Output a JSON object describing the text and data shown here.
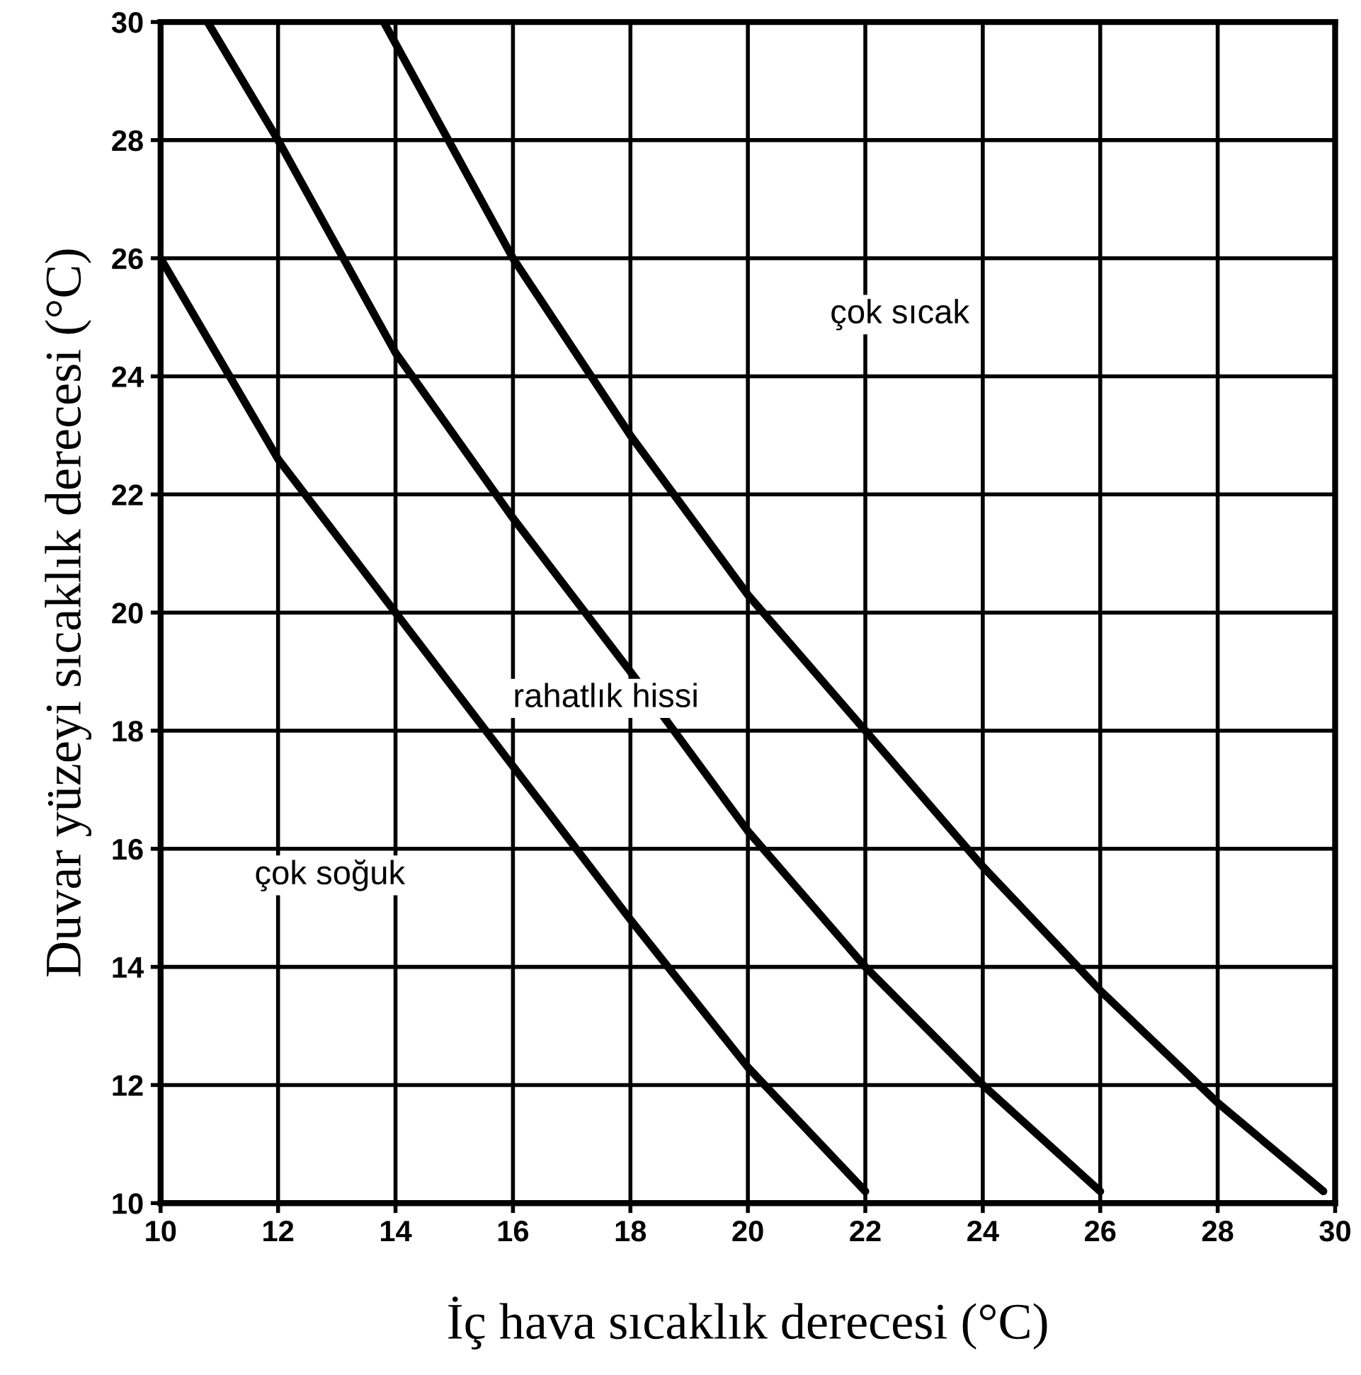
{
  "chart_data": {
    "type": "line",
    "xlabel": "İç hava sıcaklık derecesi (°C)",
    "ylabel": "Duvar yüzeyi sıcaklık derecesi (°C)",
    "xlim": [
      10,
      30
    ],
    "ylim": [
      10,
      30
    ],
    "xticks": [
      10,
      12,
      14,
      16,
      18,
      20,
      22,
      24,
      26,
      28,
      30
    ],
    "yticks": [
      10,
      12,
      14,
      16,
      18,
      20,
      22,
      24,
      26,
      28,
      30
    ],
    "grid": true,
    "legend": false,
    "marker": "none",
    "line_style": "solid",
    "series": [
      {
        "color": "#000000",
        "x": [
          10,
          12,
          14,
          16,
          18,
          20,
          22
        ],
        "values": [
          26,
          22.6,
          20,
          17.4,
          14.8,
          12.3,
          10.2
        ]
      },
      {
        "color": "#000000",
        "x": [
          10.8,
          12,
          14,
          16,
          18,
          20,
          22,
          24,
          26
        ],
        "values": [
          30,
          28,
          24.4,
          21.6,
          19,
          16.3,
          14,
          12,
          10.2
        ]
      },
      {
        "color": "#000000",
        "x": [
          13.8,
          16,
          18,
          20,
          22,
          24,
          26,
          28,
          29.8
        ],
        "values": [
          30,
          26,
          23,
          20.3,
          18,
          15.7,
          13.6,
          11.7,
          10.2
        ]
      }
    ],
    "annotations": [
      "çok sıcak",
      "rahatlık hissi",
      "çok soğuk"
    ]
  }
}
